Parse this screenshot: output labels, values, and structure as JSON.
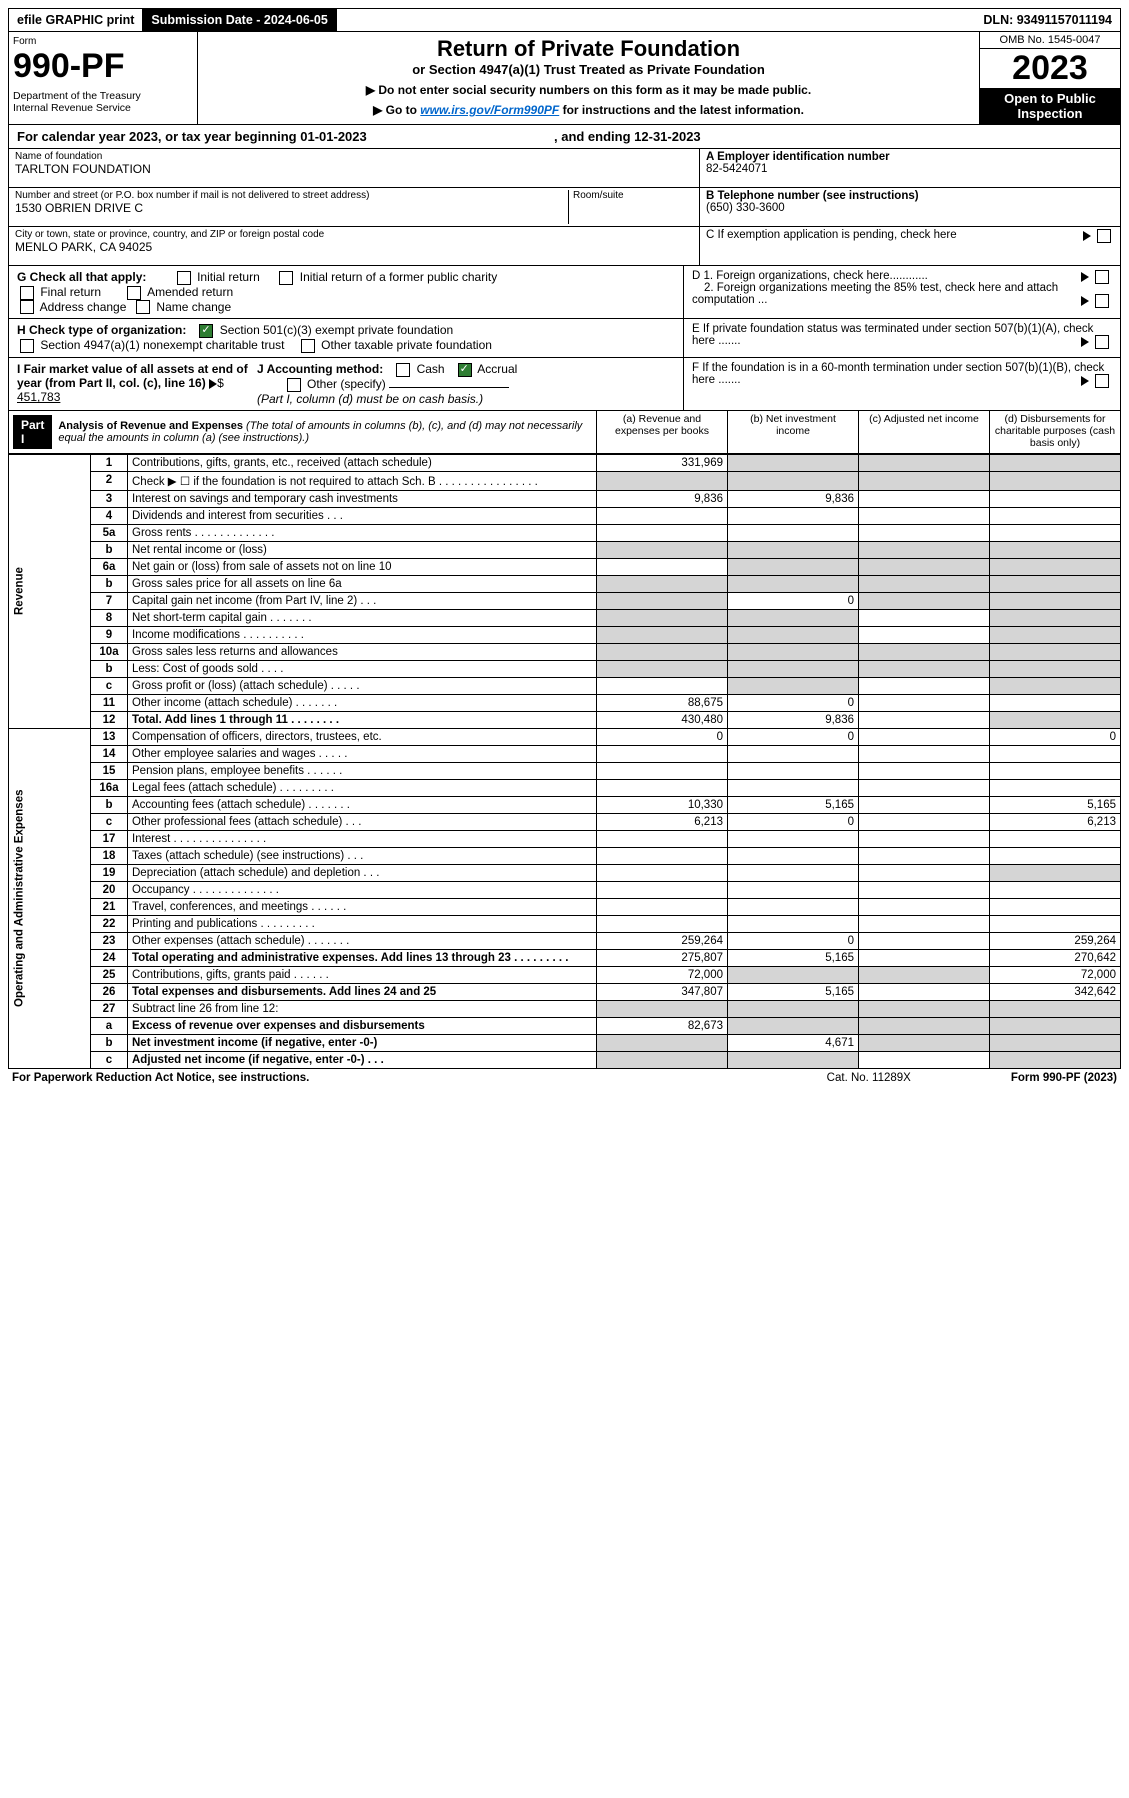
{
  "top": {
    "efile": "efile GRAPHIC print",
    "submission_lbl": "Submission Date - 2024-06-05",
    "dln": "DLN: 93491157011194"
  },
  "header": {
    "form_lbl": "Form",
    "form_no": "990-PF",
    "dept": "Department of the Treasury\nInternal Revenue Service",
    "title": "Return of Private Foundation",
    "subtitle": "or Section 4947(a)(1) Trust Treated as Private Foundation",
    "note1": "▶ Do not enter social security numbers on this form as it may be made public.",
    "note2_pre": "▶ Go to ",
    "note2_link": "www.irs.gov/Form990PF",
    "note2_post": " for instructions and the latest information.",
    "omb": "OMB No. 1545-0047",
    "year": "2023",
    "open": "Open to Public Inspection"
  },
  "calyear": {
    "pre": "For calendar year 2023, or tax year beginning ",
    "begin": "01-01-2023",
    "mid": " , and ending ",
    "end": "12-31-2023"
  },
  "info": {
    "name_lbl": "Name of foundation",
    "name": "TARLTON FOUNDATION",
    "addr_lbl": "Number and street (or P.O. box number if mail is not delivered to street address)",
    "addr": "1530 OBRIEN DRIVE C",
    "room_lbl": "Room/suite",
    "city_lbl": "City or town, state or province, country, and ZIP or foreign postal code",
    "city": "MENLO PARK, CA  94025",
    "ein_lbl": "A Employer identification number",
    "ein": "82-5424071",
    "tel_lbl": "B Telephone number (see instructions)",
    "tel": "(650) 330-3600",
    "c": "C If exemption application is pending, check here",
    "d1": "D 1. Foreign organizations, check here............",
    "d2": "2. Foreign organizations meeting the 85% test, check here and attach computation ...",
    "e": "E  If private foundation status was terminated under section 507(b)(1)(A), check here .......",
    "f": "F  If the foundation is in a 60-month termination under section 507(b)(1)(B), check here .......",
    "g_lbl": "G Check all that apply:",
    "g_opts": [
      "Initial return",
      "Final return",
      "Address change",
      "Initial return of a former public charity",
      "Amended return",
      "Name change"
    ],
    "h_lbl": "H Check type of organization:",
    "h1": "Section 501(c)(3) exempt private foundation",
    "h2": "Section 4947(a)(1) nonexempt charitable trust",
    "h3": "Other taxable private foundation",
    "i_lbl": "I Fair market value of all assets at end of year (from Part II, col. (c), line 16)",
    "i_val": "451,783",
    "j_lbl": "J Accounting method:",
    "j_cash": "Cash",
    "j_acc": "Accrual",
    "j_oth": "Other (specify)",
    "j_note": "(Part I, column (d) must be on cash basis.)"
  },
  "part1": {
    "label": "Part I",
    "title": "Analysis of Revenue and Expenses",
    "sub": " (The total of amounts in columns (b), (c), and (d) may not necessarily equal the amounts in column (a) (see instructions).)",
    "col_a": "(a) Revenue and expenses per books",
    "col_b": "(b) Net investment income",
    "col_c": "(c) Adjusted net income",
    "col_d": "(d) Disbursements for charitable purposes (cash basis only)"
  },
  "sections": {
    "rev": "Revenue",
    "exp": "Operating and Administrative Expenses"
  },
  "rows": [
    {
      "ln": "1",
      "desc": "Contributions, gifts, grants, etc., received (attach schedule)",
      "a": "331,969",
      "b": "",
      "c": "",
      "d": "",
      "shade": [
        "b",
        "c",
        "d"
      ]
    },
    {
      "ln": "2",
      "desc": "Check ▶ ☐ if the foundation is not required to attach Sch. B  . . . . . . . . . . . . . . . .",
      "a": "",
      "shade": [
        "a",
        "b",
        "c",
        "d"
      ]
    },
    {
      "ln": "3",
      "desc": "Interest on savings and temporary cash investments",
      "a": "9,836",
      "b": "9,836"
    },
    {
      "ln": "4",
      "desc": "Dividends and interest from securities  . . .",
      "a": "",
      "b": ""
    },
    {
      "ln": "5a",
      "desc": "Gross rents  . . . . . . . . . . . . .",
      "a": "",
      "b": ""
    },
    {
      "ln": "b",
      "desc": "Net rental income or (loss)",
      "a": "",
      "shade": [
        "a",
        "b",
        "c",
        "d"
      ]
    },
    {
      "ln": "6a",
      "desc": "Net gain or (loss) from sale of assets not on line 10",
      "a": "",
      "shade": [
        "b",
        "c",
        "d"
      ]
    },
    {
      "ln": "b",
      "desc": "Gross sales price for all assets on line 6a",
      "a": "",
      "shade": [
        "a",
        "b",
        "c",
        "d"
      ]
    },
    {
      "ln": "7",
      "desc": "Capital gain net income (from Part IV, line 2)  . . .",
      "b": "0",
      "shade": [
        "a",
        "c",
        "d"
      ]
    },
    {
      "ln": "8",
      "desc": "Net short-term capital gain  . . . . . . .",
      "shade": [
        "a",
        "b",
        "d"
      ]
    },
    {
      "ln": "9",
      "desc": "Income modifications . . . . . . . . . .",
      "shade": [
        "a",
        "b",
        "d"
      ]
    },
    {
      "ln": "10a",
      "desc": "Gross sales less returns and allowances",
      "shade": [
        "a",
        "b",
        "c",
        "d"
      ]
    },
    {
      "ln": "b",
      "desc": "Less: Cost of goods sold  . . . .",
      "shade": [
        "a",
        "b",
        "c",
        "d"
      ]
    },
    {
      "ln": "c",
      "desc": "Gross profit or (loss) (attach schedule)   . . . . .",
      "shade": [
        "b",
        "d"
      ]
    },
    {
      "ln": "11",
      "desc": "Other income (attach schedule)  . . . . . . .",
      "a": "88,675",
      "b": "0"
    },
    {
      "ln": "12",
      "desc": "Total. Add lines 1 through 11  . . . . . . . .",
      "a": "430,480",
      "b": "9,836",
      "bold": true,
      "shade": [
        "d"
      ]
    },
    {
      "ln": "13",
      "desc": "Compensation of officers, directors, trustees, etc.",
      "a": "0",
      "b": "0",
      "d": "0"
    },
    {
      "ln": "14",
      "desc": "Other employee salaries and wages  . . . . .",
      "a": ""
    },
    {
      "ln": "15",
      "desc": "Pension plans, employee benefits . . . . . .",
      "a": ""
    },
    {
      "ln": "16a",
      "desc": "Legal fees (attach schedule) . . . . . . . . .",
      "a": ""
    },
    {
      "ln": "b",
      "desc": "Accounting fees (attach schedule) . . . . . . .",
      "a": "10,330",
      "b": "5,165",
      "d": "5,165"
    },
    {
      "ln": "c",
      "desc": "Other professional fees (attach schedule)  . . .",
      "a": "6,213",
      "b": "0",
      "d": "6,213"
    },
    {
      "ln": "17",
      "desc": "Interest . . . . . . . . . . . . . . .",
      "a": ""
    },
    {
      "ln": "18",
      "desc": "Taxes (attach schedule) (see instructions)   . . .",
      "a": ""
    },
    {
      "ln": "19",
      "desc": "Depreciation (attach schedule) and depletion  . . .",
      "shade": [
        "d"
      ]
    },
    {
      "ln": "20",
      "desc": "Occupancy . . . . . . . . . . . . . .",
      "a": ""
    },
    {
      "ln": "21",
      "desc": "Travel, conferences, and meetings . . . . . .",
      "a": ""
    },
    {
      "ln": "22",
      "desc": "Printing and publications . . . . . . . . .",
      "a": ""
    },
    {
      "ln": "23",
      "desc": "Other expenses (attach schedule) . . . . . . .",
      "a": "259,264",
      "b": "0",
      "d": "259,264"
    },
    {
      "ln": "24",
      "desc": "Total operating and administrative expenses. Add lines 13 through 23  . . . . . . . . .",
      "a": "275,807",
      "b": "5,165",
      "d": "270,642",
      "bold": true
    },
    {
      "ln": "25",
      "desc": "Contributions, gifts, grants paid  . . . . . .",
      "a": "72,000",
      "d": "72,000",
      "shade": [
        "b",
        "c"
      ]
    },
    {
      "ln": "26",
      "desc": "Total expenses and disbursements. Add lines 24 and 25",
      "a": "347,807",
      "b": "5,165",
      "d": "342,642",
      "bold": true
    },
    {
      "ln": "27",
      "desc": "Subtract line 26 from line 12:",
      "shade": [
        "a",
        "b",
        "c",
        "d"
      ]
    },
    {
      "ln": "a",
      "desc": "Excess of revenue over expenses and disbursements",
      "a": "82,673",
      "bold": true,
      "shade": [
        "b",
        "c",
        "d"
      ]
    },
    {
      "ln": "b",
      "desc": "Net investment income (if negative, enter -0-)",
      "b": "4,671",
      "bold": true,
      "shade": [
        "a",
        "c",
        "d"
      ]
    },
    {
      "ln": "c",
      "desc": "Adjusted net income (if negative, enter -0-)  . . .",
      "bold": true,
      "shade": [
        "a",
        "b",
        "d"
      ]
    }
  ],
  "foot": {
    "left": "For Paperwork Reduction Act Notice, see instructions.",
    "mid": "Cat. No. 11289X",
    "right": "Form 990-PF (2023)"
  },
  "colors": {
    "link": "#0066cc",
    "shade": "#d5d5d5",
    "check": "#2e7d32"
  }
}
